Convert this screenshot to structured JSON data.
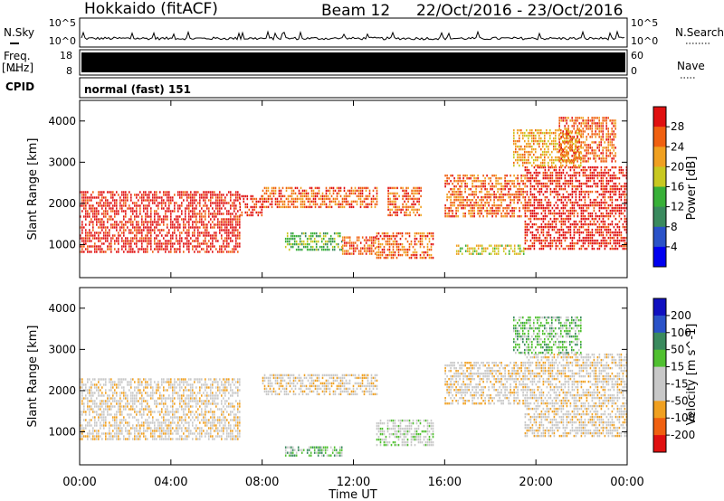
{
  "header": {
    "station": "Hokkaido (fitACF)",
    "beam": "Beam 12",
    "date_range": "22/Oct/2016 - 23/Oct/2016"
  },
  "top_panels": {
    "nsky_label": "N.Sky",
    "nsearch_label": "N.Search",
    "nsky_tick_top": "10^5",
    "nsky_tick_bottom": "10^0",
    "nsearch_tick_top": "10^5",
    "nsearch_tick_bottom": "10^0",
    "freq_label": "Freq.",
    "freq_unit": "[MHz]",
    "freq_tick_top": "18",
    "freq_tick_bottom": "8",
    "nave_label": "Nave",
    "nave_tick_top": "60",
    "nave_tick_bottom": "0",
    "cpid_label": "CPID",
    "cpid_text": "normal (fast) 151"
  },
  "chart_data": [
    {
      "type": "heatmap",
      "name": "power",
      "ylabel": "Slant Range [km]",
      "ylim": [
        200,
        4500
      ],
      "yticks": [
        1000,
        2000,
        3000,
        4000
      ],
      "x_hours": [
        0,
        24
      ],
      "colorbar_label": "Power [dB]",
      "colorbar_ticks": [
        "28",
        "24",
        "20",
        "16",
        "12",
        "8",
        "4"
      ],
      "colorscale": [
        "#0000f0",
        "#2a52c8",
        "#3a8a5e",
        "#38b038",
        "#c8c820",
        "#f0a020",
        "#f06010",
        "#e01010"
      ],
      "bands": [
        {
          "t0": 0.0,
          "t1": 7.0,
          "r0": 800,
          "r1": 2300,
          "level": 7
        },
        {
          "t0": 7.0,
          "t1": 8.0,
          "r0": 1700,
          "r1": 2200,
          "level": 7
        },
        {
          "t0": 8.0,
          "t1": 13.0,
          "r0": 1900,
          "r1": 2400,
          "level": 6
        },
        {
          "t0": 9.0,
          "t1": 11.5,
          "r0": 900,
          "r1": 1300,
          "level": 3
        },
        {
          "t0": 11.5,
          "t1": 13.0,
          "r0": 800,
          "r1": 1200,
          "level": 6
        },
        {
          "t0": 13.0,
          "t1": 15.5,
          "r0": 700,
          "r1": 1300,
          "level": 6
        },
        {
          "t0": 13.5,
          "t1": 15.0,
          "r0": 1700,
          "r1": 2400,
          "level": 6
        },
        {
          "t0": 16.0,
          "t1": 19.5,
          "r0": 1700,
          "r1": 2700,
          "level": 6
        },
        {
          "t0": 16.5,
          "t1": 19.5,
          "r0": 800,
          "r1": 1000,
          "level": 4
        },
        {
          "t0": 19.5,
          "t1": 24.0,
          "r0": 900,
          "r1": 2900,
          "level": 7
        },
        {
          "t0": 19.0,
          "t1": 22.0,
          "r0": 2900,
          "r1": 3800,
          "level": 5
        },
        {
          "t0": 21.0,
          "t1": 23.5,
          "r0": 3000,
          "r1": 4100,
          "level": 6
        }
      ]
    },
    {
      "type": "heatmap",
      "name": "velocity",
      "ylabel": "Slant Range [km]",
      "xlabel": "Time UT",
      "ylim": [
        200,
        4500
      ],
      "yticks": [
        1000,
        2000,
        3000,
        4000
      ],
      "x_hours": [
        0,
        24
      ],
      "xticks": [
        "00:00",
        "04:00",
        "08:00",
        "12:00",
        "16:00",
        "20:00",
        "00:00"
      ],
      "colorbar_label": "Velocity [m s^-1]",
      "colorbar_ticks": [
        "200",
        "100",
        "50",
        "15",
        "-15",
        "-50",
        "-100",
        "-200"
      ],
      "colorscale": [
        "#e01010",
        "#f06010",
        "#f0a020",
        "#c8c8c8",
        "#c8c8c8",
        "#50c030",
        "#3a8a5e",
        "#2a52c8",
        "#1010c0"
      ],
      "bands": [
        {
          "t0": 0.0,
          "t1": 7.0,
          "r0": 800,
          "r1": 2300,
          "level": 3
        },
        {
          "t0": 8.0,
          "t1": 13.0,
          "r0": 1900,
          "r1": 2400,
          "level": 3
        },
        {
          "t0": 9.0,
          "t1": 11.5,
          "r0": 450,
          "r1": 650,
          "level": 5
        },
        {
          "t0": 13.0,
          "t1": 15.5,
          "r0": 700,
          "r1": 1300,
          "level": 4
        },
        {
          "t0": 16.0,
          "t1": 19.5,
          "r0": 1700,
          "r1": 2700,
          "level": 3
        },
        {
          "t0": 19.5,
          "t1": 24.0,
          "r0": 900,
          "r1": 2900,
          "level": 3
        },
        {
          "t0": 19.0,
          "t1": 22.0,
          "r0": 2900,
          "r1": 3800,
          "level": 5
        }
      ]
    }
  ]
}
